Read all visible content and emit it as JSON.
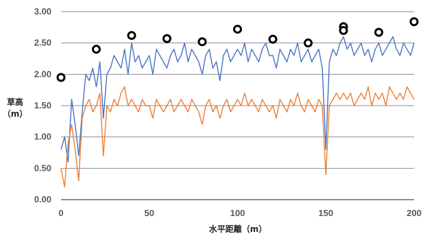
{
  "chart_data": {
    "type": "line",
    "xlabel": "水平距離（m）",
    "ylabel_lines": [
      "草高",
      "（m）"
    ],
    "xlim": [
      0,
      200
    ],
    "ylim": [
      0,
      3
    ],
    "x_ticks": [
      "0",
      "50",
      "100",
      "150",
      "200"
    ],
    "y_ticks": [
      "0.00",
      "0.50",
      "1.00",
      "1.50",
      "2.00",
      "2.50",
      "3.00"
    ],
    "grid": true,
    "legend": "none",
    "colors": {
      "blue": "#4472c4",
      "orange": "#ed7d31",
      "markers": "#000000"
    },
    "series": [
      {
        "color": "#4472c4",
        "style": "line",
        "x": [
          0,
          2,
          4,
          6,
          8,
          10,
          12,
          14,
          16,
          18,
          20,
          22,
          24,
          26,
          28,
          30,
          32,
          34,
          36,
          38,
          40,
          42,
          44,
          46,
          48,
          50,
          52,
          54,
          56,
          58,
          60,
          62,
          64,
          66,
          68,
          70,
          72,
          74,
          76,
          78,
          80,
          82,
          84,
          86,
          88,
          90,
          92,
          94,
          96,
          98,
          100,
          102,
          104,
          106,
          108,
          110,
          112,
          114,
          116,
          118,
          120,
          122,
          124,
          126,
          128,
          130,
          132,
          134,
          136,
          138,
          140,
          142,
          144,
          146,
          148,
          150,
          152,
          154,
          156,
          158,
          160,
          162,
          164,
          166,
          168,
          170,
          172,
          174,
          176,
          178,
          180,
          182,
          184,
          186,
          188,
          190,
          192,
          194,
          196,
          198,
          200
        ],
        "y": [
          0.8,
          1.0,
          0.6,
          1.6,
          1.2,
          0.7,
          1.4,
          2.0,
          1.9,
          2.1,
          1.8,
          2.2,
          1.3,
          2.0,
          2.1,
          2.3,
          2.2,
          2.1,
          2.4,
          2.0,
          2.5,
          2.2,
          2.3,
          2.1,
          2.2,
          2.3,
          2.0,
          2.4,
          2.3,
          2.2,
          2.1,
          2.3,
          2.4,
          2.2,
          2.3,
          2.5,
          2.2,
          2.4,
          2.3,
          2.2,
          2.0,
          2.3,
          2.4,
          2.1,
          2.2,
          1.9,
          2.3,
          2.4,
          2.2,
          2.3,
          2.4,
          2.3,
          2.5,
          2.2,
          2.4,
          2.3,
          2.2,
          2.4,
          2.5,
          2.3,
          2.3,
          2.1,
          2.4,
          2.3,
          2.2,
          2.4,
          2.3,
          2.5,
          2.2,
          2.3,
          2.4,
          2.2,
          2.3,
          2.4,
          2.1,
          0.8,
          2.2,
          2.4,
          2.3,
          2.5,
          2.6,
          2.4,
          2.5,
          2.3,
          2.4,
          2.5,
          2.3,
          2.4,
          2.2,
          2.4,
          2.5,
          2.3,
          2.4,
          2.5,
          2.6,
          2.4,
          2.3,
          2.5,
          2.4,
          2.3,
          2.5
        ]
      },
      {
        "color": "#ed7d31",
        "style": "line",
        "x": [
          0,
          2,
          4,
          6,
          8,
          10,
          12,
          14,
          16,
          18,
          20,
          22,
          24,
          26,
          28,
          30,
          32,
          34,
          36,
          38,
          40,
          42,
          44,
          46,
          48,
          50,
          52,
          54,
          56,
          58,
          60,
          62,
          64,
          66,
          68,
          70,
          72,
          74,
          76,
          78,
          80,
          82,
          84,
          86,
          88,
          90,
          92,
          94,
          96,
          98,
          100,
          102,
          104,
          106,
          108,
          110,
          112,
          114,
          116,
          118,
          120,
          122,
          124,
          126,
          128,
          130,
          132,
          134,
          136,
          138,
          140,
          142,
          144,
          146,
          148,
          150,
          152,
          154,
          156,
          158,
          160,
          162,
          164,
          166,
          168,
          170,
          172,
          174,
          176,
          178,
          180,
          182,
          184,
          186,
          188,
          190,
          192,
          194,
          196,
          198,
          200
        ],
        "y": [
          0.5,
          0.2,
          0.9,
          1.2,
          0.8,
          0.3,
          1.3,
          1.5,
          1.6,
          1.4,
          1.5,
          1.7,
          0.7,
          1.5,
          1.4,
          1.6,
          1.5,
          1.7,
          1.8,
          1.5,
          1.6,
          1.5,
          1.4,
          1.6,
          1.5,
          1.5,
          1.3,
          1.6,
          1.5,
          1.4,
          1.5,
          1.6,
          1.4,
          1.5,
          1.6,
          1.5,
          1.4,
          1.6,
          1.5,
          1.4,
          1.2,
          1.5,
          1.6,
          1.4,
          1.5,
          1.3,
          1.5,
          1.6,
          1.4,
          1.5,
          1.6,
          1.5,
          1.7,
          1.5,
          1.6,
          1.5,
          1.4,
          1.6,
          1.5,
          1.4,
          1.5,
          1.3,
          1.6,
          1.5,
          1.4,
          1.6,
          1.5,
          1.7,
          1.5,
          1.4,
          1.6,
          1.5,
          1.4,
          1.6,
          1.5,
          0.4,
          1.5,
          1.6,
          1.7,
          1.6,
          1.7,
          1.6,
          1.7,
          1.5,
          1.6,
          1.7,
          1.6,
          1.8,
          1.5,
          1.7,
          1.6,
          1.7,
          1.5,
          1.8,
          1.7,
          1.6,
          1.7,
          1.6,
          1.8,
          1.7,
          1.6
        ]
      },
      {
        "color": "#000000",
        "style": "markers",
        "x": [
          0,
          20,
          40,
          60,
          80,
          100,
          120,
          140,
          160,
          160,
          180,
          200
        ],
        "y": [
          1.95,
          2.4,
          2.62,
          2.57,
          2.52,
          2.72,
          2.56,
          2.5,
          2.76,
          2.7,
          2.67,
          2.84
        ]
      }
    ]
  }
}
